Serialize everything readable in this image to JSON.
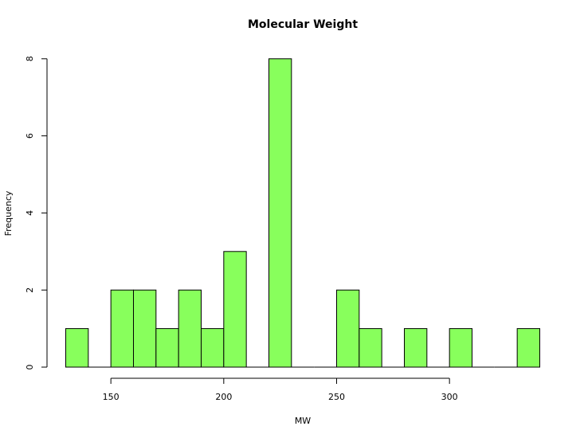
{
  "chart_data": {
    "type": "bar",
    "title": "Molecular Weight",
    "xlabel": "MW",
    "ylabel": "Frequency",
    "bin_width": 10,
    "bins": [
      {
        "start": 130,
        "end": 140,
        "count": 1
      },
      {
        "start": 140,
        "end": 150,
        "count": 0
      },
      {
        "start": 150,
        "end": 160,
        "count": 2
      },
      {
        "start": 160,
        "end": 170,
        "count": 2
      },
      {
        "start": 170,
        "end": 180,
        "count": 1
      },
      {
        "start": 180,
        "end": 190,
        "count": 2
      },
      {
        "start": 190,
        "end": 200,
        "count": 1
      },
      {
        "start": 200,
        "end": 210,
        "count": 3
      },
      {
        "start": 210,
        "end": 220,
        "count": 0
      },
      {
        "start": 220,
        "end": 230,
        "count": 8
      },
      {
        "start": 230,
        "end": 240,
        "count": 0
      },
      {
        "start": 240,
        "end": 250,
        "count": 0
      },
      {
        "start": 250,
        "end": 260,
        "count": 2
      },
      {
        "start": 260,
        "end": 270,
        "count": 1
      },
      {
        "start": 270,
        "end": 280,
        "count": 0
      },
      {
        "start": 280,
        "end": 290,
        "count": 1
      },
      {
        "start": 290,
        "end": 300,
        "count": 0
      },
      {
        "start": 300,
        "end": 310,
        "count": 1
      },
      {
        "start": 310,
        "end": 320,
        "count": 0
      },
      {
        "start": 320,
        "end": 330,
        "count": 0
      },
      {
        "start": 330,
        "end": 340,
        "count": 1
      }
    ],
    "xticks": [
      150,
      200,
      250,
      300
    ],
    "xtick_labels": [
      "150",
      "200",
      "250",
      "300"
    ],
    "yticks": [
      0,
      2,
      4,
      6,
      8
    ],
    "ytick_labels": [
      "0",
      "2",
      "4",
      "6",
      "8"
    ],
    "xlim": [
      130,
      340
    ],
    "ylim": [
      0,
      8
    ],
    "bar_color": "#88ff5c",
    "bar_stroke": "#000000",
    "grid": false,
    "legend": "none"
  }
}
